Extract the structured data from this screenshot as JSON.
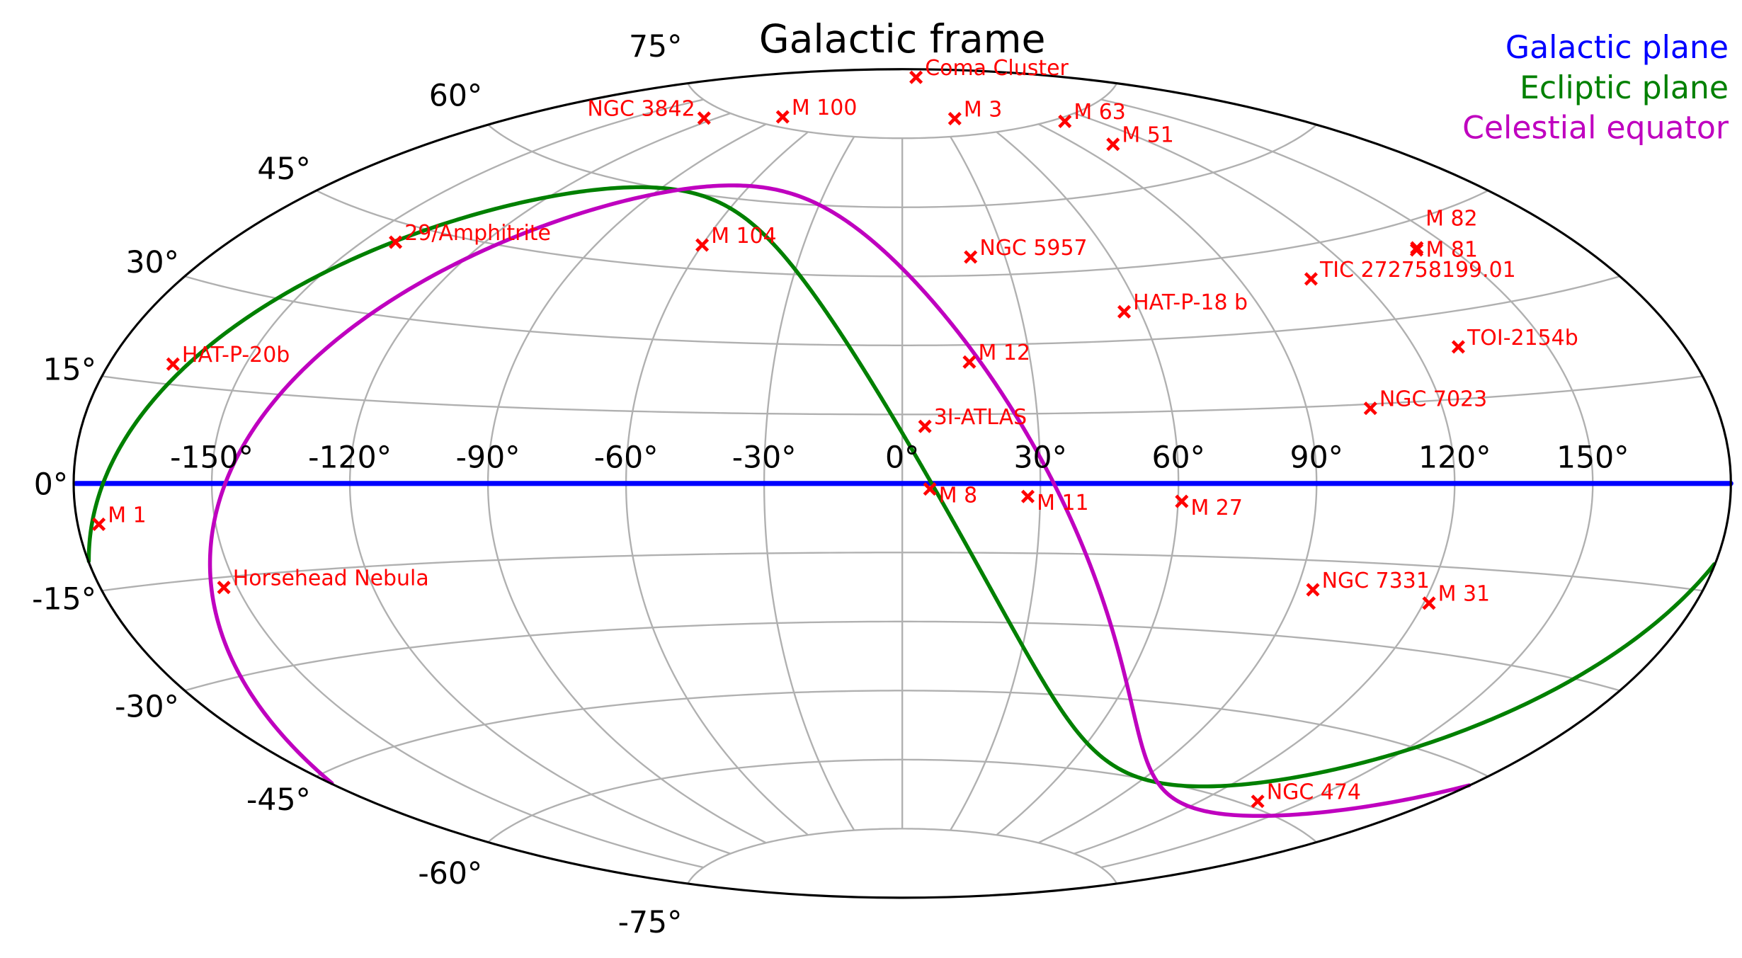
{
  "chart_data": {
    "type": "scatter",
    "projection": "aitoff",
    "title": "Galactic frame",
    "xlabel": "",
    "ylabel": "",
    "xlim": [
      -180,
      180
    ],
    "ylim": [
      -90,
      90
    ],
    "grid": true,
    "legend_placement": "top-right",
    "x_ticks": [
      -150,
      -120,
      -90,
      -60,
      -30,
      0,
      30,
      60,
      90,
      120,
      150
    ],
    "x_tick_labels": [
      "-150°",
      "-120°",
      "-90°",
      "-60°",
      "-30°",
      "0°",
      "30°",
      "60°",
      "90°",
      "120°",
      "150°"
    ],
    "y_ticks": [
      -75,
      -60,
      -45,
      -30,
      -15,
      0,
      15,
      30,
      45,
      60,
      75
    ],
    "y_tick_labels": [
      "-75°",
      "-60°",
      "-45°",
      "-30°",
      "-15°",
      "0°",
      "15°",
      "30°",
      "45°",
      "60°",
      "75°"
    ],
    "curves": [
      {
        "name": "Galactic plane",
        "color": "#0000ff",
        "pole_l": 0,
        "pole_b": 90
      },
      {
        "name": "Ecliptic plane",
        "color": "#008000",
        "pole_l": 96.38,
        "pole_b": 29.81
      },
      {
        "name": "Celestial equator",
        "color": "#bf00bf",
        "pole_l": 122.93,
        "pole_b": 27.13
      }
    ],
    "marker_color": "#ff0000",
    "marker": "x",
    "points": [
      {
        "name": "Coma Cluster",
        "l": 58.1,
        "b": 88.0
      },
      {
        "name": "NGC 3842",
        "l": -125.0,
        "b": 73.0
      },
      {
        "name": "M 100",
        "l": -89.0,
        "b": 76.9
      },
      {
        "name": "M 3",
        "l": 42.2,
        "b": 78.7
      },
      {
        "name": "M 63",
        "l": 106.0,
        "b": 74.3
      },
      {
        "name": "M 51",
        "l": 104.9,
        "b": 68.6
      },
      {
        "name": "29/Amphitrite",
        "l": -142.0,
        "b": 42.0
      },
      {
        "name": "M 104",
        "l": -60.0,
        "b": 50.0
      },
      {
        "name": "NGC 5957",
        "l": 20.0,
        "b": 49.0
      },
      {
        "name": "M 81",
        "l": 142.1,
        "b": 40.9
      },
      {
        "name": "M 82",
        "l": 141.4,
        "b": 40.6
      },
      {
        "name": "TIC 272758199.01",
        "l": 108.0,
        "b": 39.0
      },
      {
        "name": "HAT-P-18 b",
        "l": 56.0,
        "b": 36.0
      },
      {
        "name": "TOI-2154b",
        "l": 130.0,
        "b": 24.0
      },
      {
        "name": "HAT-P-20b",
        "l": -166.0,
        "b": 18.0
      },
      {
        "name": "M 12",
        "l": 15.7,
        "b": 26.3
      },
      {
        "name": "NGC 7023",
        "l": 104.1,
        "b": 14.2
      },
      {
        "name": "3I-ATLAS",
        "l": 5.0,
        "b": 12.4
      },
      {
        "name": "M 8",
        "l": 6.0,
        "b": -1.2
      },
      {
        "name": "M 11",
        "l": 27.3,
        "b": -2.8
      },
      {
        "name": "M 27",
        "l": 60.8,
        "b": -3.7
      },
      {
        "name": "M 1",
        "l": -175.4,
        "b": -5.8
      },
      {
        "name": "Horsehead Nebula",
        "l": -153.0,
        "b": -16.6
      },
      {
        "name": "NGC 7331",
        "l": 93.7,
        "b": -20.7
      },
      {
        "name": "M 31",
        "l": 121.2,
        "b": -21.6
      },
      {
        "name": "NGC 474",
        "l": 137.0,
        "b": -59.0
      }
    ]
  }
}
